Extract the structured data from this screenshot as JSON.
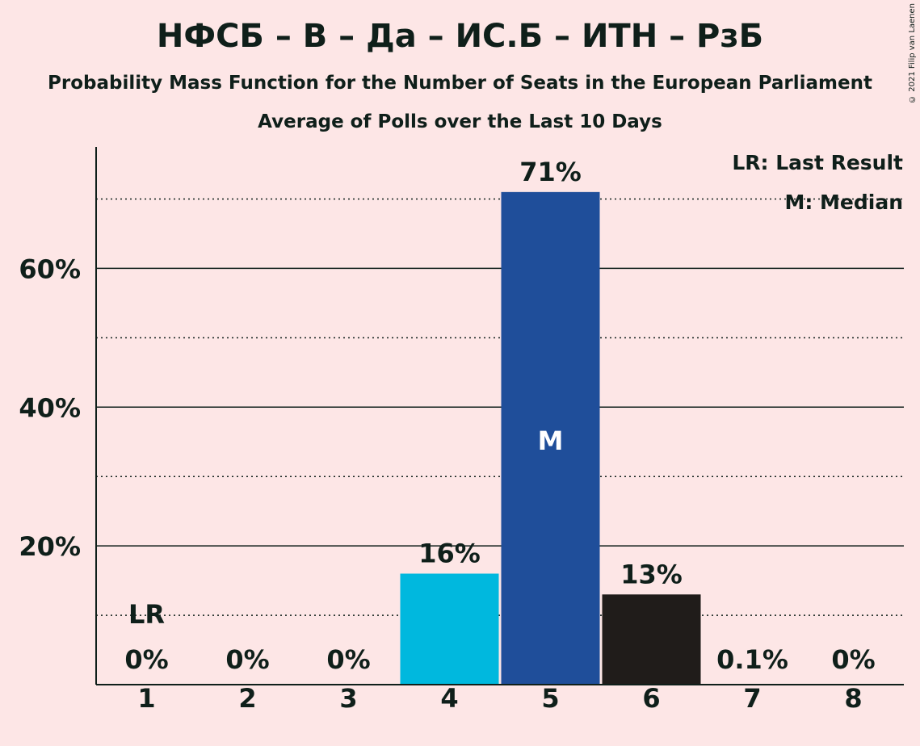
{
  "header": {
    "title": "НФСБ – В – Да – ИС.Б – ИТН – РзБ",
    "subtitle": "Probability Mass Function for the Number of Seats in the European Parliament",
    "subtitle2": "Average of Polls over the Last 10 Days",
    "copyright": "© 2021 Filip van Laenen"
  },
  "legend": {
    "last_result": "LR: Last Result",
    "median": "M: Median"
  },
  "colors": {
    "background": "#fde6e6",
    "text": "#0f1f1a",
    "bar_light": "#00b8de",
    "bar_median": "#1f4e9a",
    "bar_dark": "#201c1a"
  },
  "chart_data": {
    "type": "bar",
    "categories": [
      "1",
      "2",
      "3",
      "4",
      "5",
      "6",
      "7",
      "8"
    ],
    "values": [
      0,
      0,
      0,
      16,
      71,
      13,
      0.1,
      0
    ],
    "value_labels": [
      "0%",
      "0%",
      "0%",
      "16%",
      "71%",
      "13%",
      "0.1%",
      "0%"
    ],
    "bar_colors": [
      "#00b8de",
      "#00b8de",
      "#00b8de",
      "#00b8de",
      "#1f4e9a",
      "#201c1a",
      "#201c1a",
      "#201c1a"
    ],
    "ylim": [
      0,
      77.5
    ],
    "yticks": [
      20,
      40,
      60
    ],
    "ytick_labels": [
      "20%",
      "40%",
      "60%"
    ],
    "minor_gridlines": [
      10,
      30,
      50,
      70
    ],
    "last_result_category": "1",
    "last_result_label": "LR",
    "median_category": "5",
    "median_label": "M",
    "legend_position": "top-right"
  }
}
